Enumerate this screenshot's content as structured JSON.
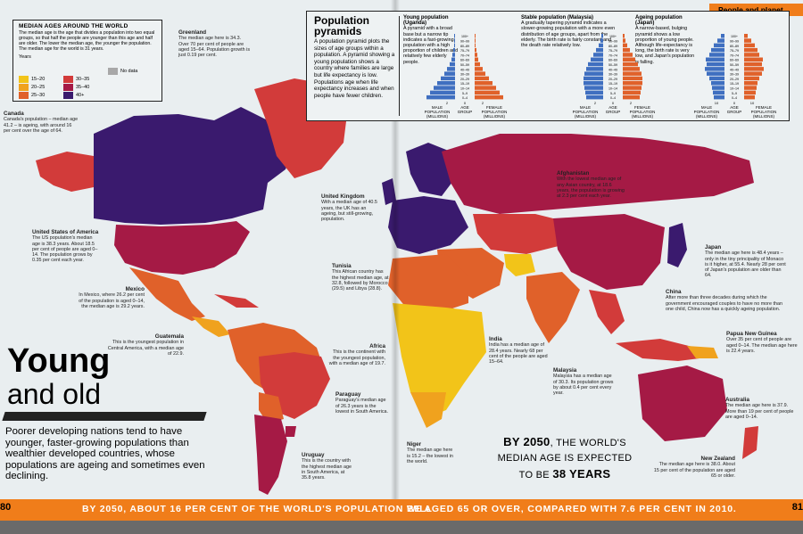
{
  "section_header": "People and planet",
  "page_left": "80",
  "page_right": "81",
  "legend": {
    "title": "MEDIAN AGES AROUND THE WORLD",
    "description": "The median age is the age that divides a population into two equal groups, so that half the people are younger than this age and half are older. The lower the median age, the younger the population. The median age for the world is 31 years.",
    "years_label": "Years",
    "items": [
      {
        "label": "15–20",
        "color": "#f2c419"
      },
      {
        "label": "20–25",
        "color": "#f0a21e"
      },
      {
        "label": "25–30",
        "color": "#e0612a"
      },
      {
        "label": "30–35",
        "color": "#d23b3a"
      },
      {
        "label": "35–40",
        "color": "#a51a45"
      },
      {
        "label": "40+",
        "color": "#3a1a6e"
      },
      {
        "label": "No data",
        "color": "#a8a8a8"
      }
    ]
  },
  "pyramids": {
    "title": "Population pyramids",
    "description": "A population pyramid plots the sizes of age groups within a population. A pyramid showing a young population shows a country where families are large but life expectancy is low. Populations age when life expectancy increases and when people have fewer children.",
    "panels": [
      {
        "title": "Young population (Uganda)",
        "text": "A pyramid with a broad base but a narrow tip indicates a fast-growing population with a high proportion of children and relatively few elderly people."
      },
      {
        "title": "Stable population (Malaysia)",
        "text": "A gradually tapering pyramid indicates a slower-growing population with a more even distribution of age groups, apart from the elderly. The birth rate is fairly constant and the death rate relatively low."
      },
      {
        "title": "Ageing population (Japan)",
        "text": "A narrow-based, bulging pyramid shows a low proportion of young people. Although life-expectancy is long, the birth rate is very low, and Japan's population is falling."
      }
    ],
    "age_groups": [
      "100+",
      "90–99",
      "80–89",
      "75–79",
      "70–74",
      "60–69",
      "50–59",
      "40–49",
      "30–39",
      "20–29",
      "15–19",
      "10–14",
      "5–9",
      "0–4"
    ],
    "caption_male": "MALE POPULATION (MILLIONS)",
    "caption_age": "AGE GROUP",
    "caption_female": "FEMALE POPULATION (MILLIONS)",
    "scale": {
      "uganda": [
        "2",
        "0",
        "2"
      ],
      "malaysia": [
        "2",
        "0",
        "2"
      ],
      "japan": [
        "10",
        "0",
        "10"
      ]
    }
  },
  "annotations": {
    "greenland": {
      "title": "Greenland",
      "text": "The median age here is 34.3. Over 70 per cent of people are aged 15–64. Population growth is just 0.19 per cent."
    },
    "canada": {
      "title": "Canada",
      "text": "Canada's population – median age 41.2 – is ageing, with around 16 per cent over the age of 64."
    },
    "usa": {
      "title": "United States of America",
      "text": "The US population's median age is 38.3 years. About 18.5 per cent of people are aged 0–14. The population grows by 0.35 per cent each year."
    },
    "mexico": {
      "title": "Mexico",
      "text": "In Mexico, where 26.2 per cent of the population is aged 0–14, the median age is 29.2 years."
    },
    "guatemala": {
      "title": "Guatemala",
      "text": "This is the youngest population in Central America, with a median age of 22.9."
    },
    "uk": {
      "title": "United Kingdom",
      "text": "With a median age of 40.5 years, the UK has an ageing, but still-growing, population."
    },
    "tunisia": {
      "title": "Tunisia",
      "text": "This African country has the highest median age, at 32.8, followed by Morocco (29.5) and Libya (28.8)."
    },
    "africa": {
      "title": "Africa",
      "text": "This is the continent with the youngest population, with a median age of 19.7."
    },
    "paraguay": {
      "title": "Paraguay",
      "text": "Paraguay's median age of 26.3 years is the lowest in South America."
    },
    "uruguay": {
      "title": "Uruguay",
      "text": "This is the country with the highest median age in South America, at 35.8 years."
    },
    "niger": {
      "title": "Niger",
      "text": "The median age here is 15.2 – the lowest in the world."
    },
    "afghanistan": {
      "title": "Afghanistan",
      "text": "With the lowest median age of any Asian country, at 18.6 years, the population is growing at 2.3 per cent each year."
    },
    "india": {
      "title": "India",
      "text": "India has a median age of 28.4 years. Nearly 68 per cent of the people are aged 15–64."
    },
    "malaysia": {
      "title": "Malaysia",
      "text": "Malaysia has a median age of 30.3. Its population grows by about 0.4 per cent every year."
    },
    "japan": {
      "title": "Japan",
      "text": "The median age here is 48.4 years – only in the tiny principality of Monaco is it higher, at 55.4. Nearly 28 per cent of Japan's population are older than 64."
    },
    "china": {
      "title": "China",
      "text": "After more than three decades during which the government encouraged couples to have no more than one child, China now has a quickly ageing population."
    },
    "png": {
      "title": "Papua New Guinea",
      "text": "Over 35 per cent of people are aged 0–14. The median age here is 22.4 years."
    },
    "australia": {
      "title": "Australia",
      "text": "The median age here is 37.9. More than 19 per cent of people are aged 0–14."
    },
    "nz": {
      "title": "New Zealand",
      "text": "The median age here is 38.0. About 15 per cent of the population are aged 65 or older."
    }
  },
  "headline": {
    "title_bold": "Young",
    "title_rest": "and old",
    "intro": "Poorer developing nations tend to have younger, faster-growing populations than wealthier developed countries, whose populations are ageing and sometimes even declining."
  },
  "callout": {
    "line1_bold": "BY 2050",
    "line1_rest": ", THE WORLD'S",
    "line2": "MEDIAN AGE IS EXPECTED",
    "line3_pre": "TO BE ",
    "line3_bold": "38 YEARS"
  },
  "footer": {
    "left": "BY 2050, ABOUT 16 PER CENT OF THE WORLD'S POPULATION WILL",
    "right": "BE AGED 65 OR OVER, COMPARED WITH 7.6 PER CENT IN 2010."
  }
}
